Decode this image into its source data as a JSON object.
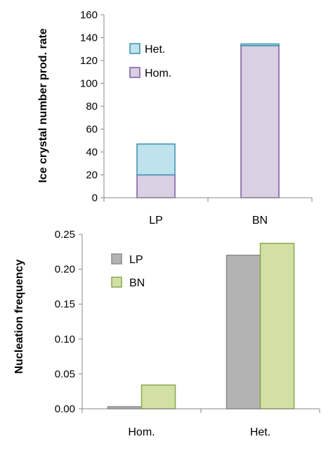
{
  "chart_data": [
    {
      "type": "bar",
      "stacked": true,
      "title": "",
      "xlabel": "",
      "ylabel": "Ice crystal number prod. rate",
      "categories": [
        "LP",
        "BN"
      ],
      "series": [
        {
          "name": "Hom.",
          "values": [
            20,
            133
          ],
          "color": "#d9d0e3",
          "edge": "#7d5a9e"
        },
        {
          "name": "Het.",
          "values": [
            27,
            1.5
          ],
          "color": "#bfe3ec",
          "edge": "#3a8fb0"
        }
      ],
      "ylim": [
        0,
        160
      ],
      "yticks": [
        "0",
        "20",
        "40",
        "60",
        "80",
        "100",
        "120",
        "140",
        "160"
      ],
      "legend_order": [
        "Het.",
        "Hom."
      ],
      "legend_position": "top-left inside",
      "grid": false
    },
    {
      "type": "bar",
      "title": "",
      "xlabel": "",
      "ylabel": "Nucleation frequency",
      "categories": [
        "Hom.",
        "Het."
      ],
      "series": [
        {
          "name": "LP",
          "values": [
            0.003,
            0.22
          ],
          "color": "#b3b3b3",
          "edge": "#8c8c8c"
        },
        {
          "name": "BN",
          "values": [
            0.034,
            0.237
          ],
          "color": "#d2e0a6",
          "edge": "#8aa84f"
        }
      ],
      "ylim": [
        0,
        0.25
      ],
      "yticks": [
        "0.00",
        "0.05",
        "0.10",
        "0.15",
        "0.20",
        "0.25"
      ],
      "legend_order": [
        "LP",
        "BN"
      ],
      "legend_position": "top-left inside",
      "grid": false
    }
  ]
}
